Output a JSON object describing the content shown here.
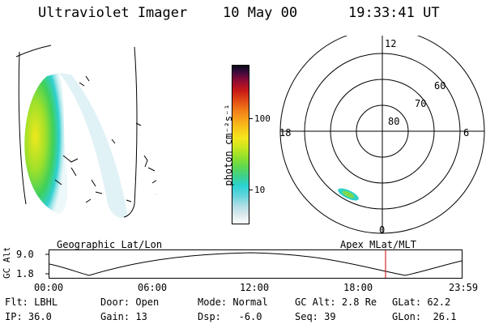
{
  "header": {
    "instrument": "Ultraviolet Imager",
    "date": "10 May 00",
    "time": "19:33:41 UT"
  },
  "colorbar": {
    "unit_label": "photon cm⁻²s⁻¹",
    "ticks": [
      "100",
      "10"
    ],
    "colors": [
      "#ffffff",
      "#d8e8ec",
      "#a8dce4",
      "#5fd3dd",
      "#2bd3d3",
      "#3fd08a",
      "#5fd94f",
      "#93e02d",
      "#c8e61e",
      "#f3e61c",
      "#f8c81a",
      "#f6a21a",
      "#f07a17",
      "#e04a15",
      "#c81a16",
      "#a8102a",
      "#7a0a3a",
      "#3a0a3c",
      "#0a0a1a"
    ]
  },
  "earth_view": {
    "label": "Geographic Lat/Lon"
  },
  "polar_plot": {
    "label": "Apex  MLat/MLT",
    "mlt_labels": [
      "12",
      "6",
      "0",
      "18"
    ],
    "lat_labels": [
      "60",
      "70",
      "80"
    ]
  },
  "altitude_plot": {
    "ylabel": "GC Alt",
    "yticks": [
      "9.0",
      "1.8"
    ],
    "xticks": [
      "00:00",
      "06:00",
      "12:00",
      "18:00",
      "23:59"
    ],
    "current_time_marker": "19:33:41"
  },
  "info_rows": [
    [
      {
        "key": "Flt:",
        "value": "LBHL"
      },
      {
        "key": "Door:",
        "value": "Open"
      },
      {
        "key": "Mode:",
        "value": "Normal"
      },
      {
        "key": "GC Alt:",
        "value": "2.8 Re"
      },
      {
        "key": "GLat:",
        "value": "62.2"
      }
    ],
    [
      {
        "key": "IP:",
        "value": "36.0"
      },
      {
        "key": "Gain:",
        "value": "13"
      },
      {
        "key": "Dsp:",
        "value": "  -6.0"
      },
      {
        "key": "Seq:",
        "value": "39"
      },
      {
        "key": "GLon:",
        "value": " 26.1"
      }
    ]
  ],
  "colors": {
    "marker": "#cc0000",
    "line": "#000000"
  }
}
